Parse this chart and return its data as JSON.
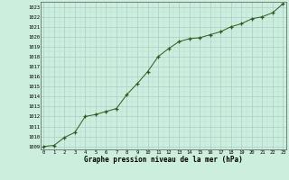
{
  "x": [
    0,
    1,
    2,
    3,
    4,
    5,
    6,
    7,
    8,
    9,
    10,
    11,
    12,
    13,
    14,
    15,
    16,
    17,
    18,
    19,
    20,
    21,
    22,
    23
  ],
  "y": [
    1009.0,
    1009.1,
    1009.9,
    1010.4,
    1012.0,
    1012.2,
    1012.5,
    1012.8,
    1014.2,
    1015.3,
    1016.5,
    1018.0,
    1018.8,
    1019.5,
    1019.8,
    1019.9,
    1020.2,
    1020.5,
    1021.0,
    1021.3,
    1021.8,
    1022.0,
    1022.4,
    1023.3
  ],
  "line_color": "#2d5a1b",
  "marker_color": "#2d5a1b",
  "bg_color": "#cceedd",
  "grid_major_color": "#aacccc",
  "grid_minor_color": "#bbdddd",
  "ylabel_values": [
    1009,
    1010,
    1011,
    1012,
    1013,
    1014,
    1015,
    1016,
    1017,
    1018,
    1019,
    1020,
    1021,
    1022,
    1023
  ],
  "xlabel": "Graphe pression niveau de la mer (hPa)",
  "ylim": [
    1008.7,
    1023.5
  ],
  "xlim": [
    -0.3,
    23.3
  ],
  "tick_fontsize": 4.0,
  "xlabel_fontsize": 5.5
}
